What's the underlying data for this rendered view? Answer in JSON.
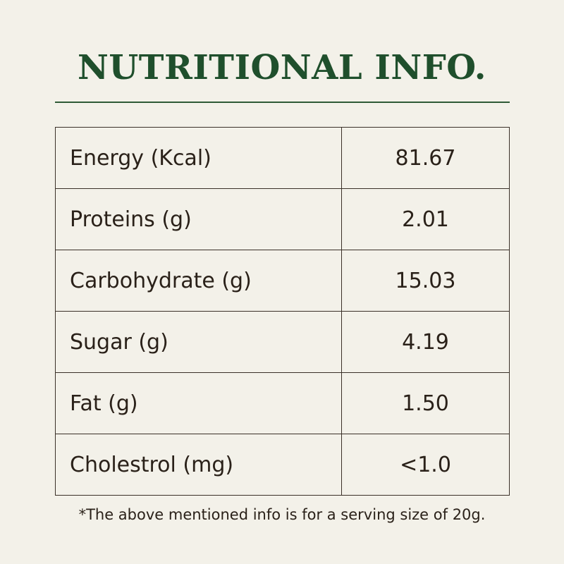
{
  "header": {
    "title": "NUTRITIONAL INFO."
  },
  "table": {
    "rows": [
      [
        "Energy (Kcal)",
        "81.67"
      ],
      [
        "Proteins (g)",
        "2.01"
      ],
      [
        "Carbohydrate (g)",
        "15.03"
      ],
      [
        "Sugar (g)",
        "4.19"
      ],
      [
        "Fat (g)",
        "1.50"
      ],
      [
        "Cholestrol (mg)",
        "<1.0"
      ]
    ]
  },
  "footnote": "*The above mentioned info is for a serving size of 20g."
}
